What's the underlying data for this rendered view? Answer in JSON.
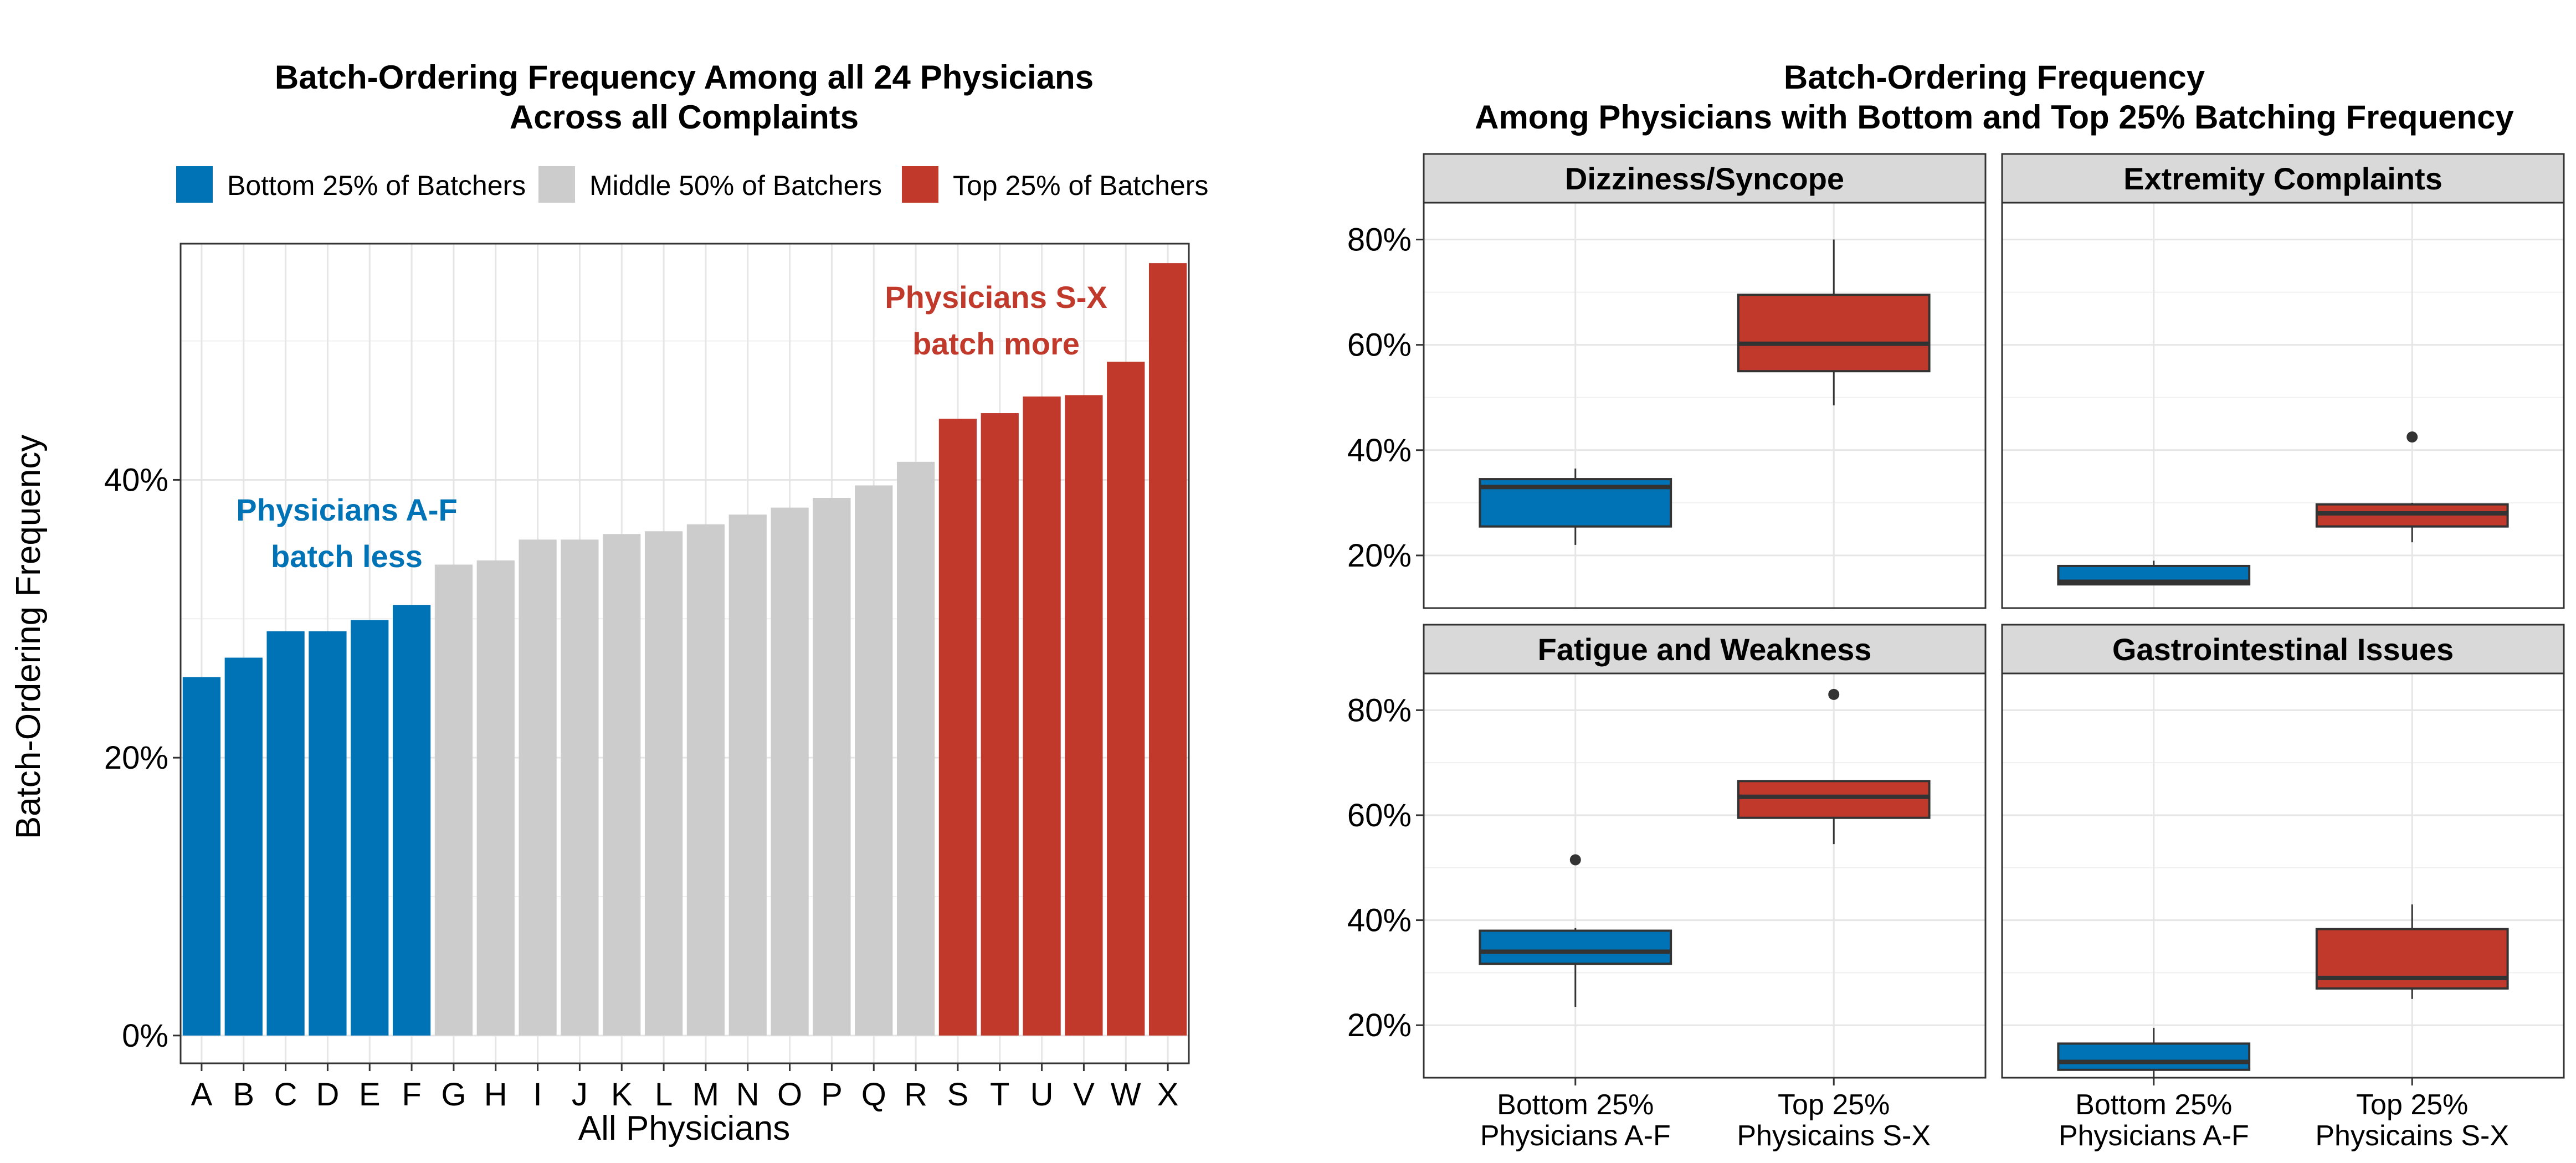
{
  "colors": {
    "bottom": "#0072b6",
    "middle": "#cccccc",
    "top": "#c0392b",
    "strip_bg": "#d9d9d9",
    "grid": "#e6e6e6",
    "box_line": "#333333"
  },
  "chart_data": [
    {
      "type": "bar",
      "title": "Batch-Ordering Frequency Among all 24 Physicians",
      "subtitle": "Across all Complaints",
      "xlabel": "All Physicians",
      "ylabel": "Batch-Ordering Frequency",
      "ylim": [
        -0.02,
        0.57
      ],
      "y_ticks": [
        0,
        0.2,
        0.4
      ],
      "y_tick_labels": [
        "0%",
        "20%",
        "40%"
      ],
      "grid": true,
      "legend_position": "top",
      "legend": [
        {
          "label": "Bottom 25% of Batchers",
          "group": "bottom"
        },
        {
          "label": "Middle 50% of Batchers",
          "group": "middle"
        },
        {
          "label": "Top 25% of Batchers",
          "group": "top"
        }
      ],
      "categories": [
        "A",
        "B",
        "C",
        "D",
        "E",
        "F",
        "G",
        "H",
        "I",
        "J",
        "K",
        "L",
        "M",
        "N",
        "O",
        "P",
        "Q",
        "R",
        "S",
        "T",
        "U",
        "V",
        "W",
        "X"
      ],
      "values": [
        0.258,
        0.272,
        0.291,
        0.291,
        0.299,
        0.31,
        0.339,
        0.342,
        0.357,
        0.357,
        0.361,
        0.363,
        0.368,
        0.375,
        0.38,
        0.387,
        0.396,
        0.413,
        0.444,
        0.448,
        0.46,
        0.461,
        0.485,
        0.556
      ],
      "groups": [
        "bottom",
        "bottom",
        "bottom",
        "bottom",
        "bottom",
        "bottom",
        "middle",
        "middle",
        "middle",
        "middle",
        "middle",
        "middle",
        "middle",
        "middle",
        "middle",
        "middle",
        "middle",
        "middle",
        "top",
        "top",
        "top",
        "top",
        "top",
        "top"
      ],
      "annotations": [
        {
          "line1": "Physicians A-F",
          "line2": "batch less",
          "group": "bottom"
        },
        {
          "line1": "Physicians S-X",
          "line2": "batch more",
          "group": "top"
        }
      ]
    },
    {
      "type": "box",
      "title": "Batch-Ordering Frequency",
      "subtitle": "Among Physicians with Bottom and Top 25% Batching Frequency",
      "ylim": [
        0.1,
        0.87
      ],
      "y_ticks": [
        0.2,
        0.4,
        0.6,
        0.8
      ],
      "y_tick_labels": [
        "20%",
        "40%",
        "60%",
        "80%"
      ],
      "grid": true,
      "categories": [
        {
          "line1": "Bottom 25%",
          "line2": "Physicians A-F",
          "group": "bottom"
        },
        {
          "line1": "Top 25%",
          "line2": "Physicains S-X",
          "group": "top"
        }
      ],
      "panels": [
        {
          "label": "Dizziness/Syncope",
          "boxes": [
            {
              "group": "bottom",
              "min": 0.22,
              "q1": 0.255,
              "median": 0.33,
              "q3": 0.345,
              "max": 0.365,
              "outliers": []
            },
            {
              "group": "top",
              "min": 0.485,
              "q1": 0.55,
              "median": 0.602,
              "q3": 0.695,
              "max": 0.8,
              "outliers": []
            }
          ]
        },
        {
          "label": "Extremity Complaints",
          "boxes": [
            {
              "group": "bottom",
              "min": 0.145,
              "q1": 0.145,
              "median": 0.15,
              "q3": 0.18,
              "max": 0.19,
              "outliers": []
            },
            {
              "group": "top",
              "min": 0.225,
              "q1": 0.255,
              "median": 0.28,
              "q3": 0.297,
              "max": 0.3,
              "outliers": [
                0.425
              ]
            }
          ]
        },
        {
          "label": "Fatigue and Weakness",
          "boxes": [
            {
              "group": "bottom",
              "min": 0.235,
              "q1": 0.317,
              "median": 0.34,
              "q3": 0.38,
              "max": 0.385,
              "outliers": [
                0.515
              ]
            },
            {
              "group": "top",
              "min": 0.545,
              "q1": 0.595,
              "median": 0.635,
              "q3": 0.665,
              "max": 0.665,
              "outliers": [
                0.83
              ]
            }
          ]
        },
        {
          "label": "Gastrointestinal Issues",
          "boxes": [
            {
              "group": "bottom",
              "min": 0.1,
              "q1": 0.115,
              "median": 0.13,
              "q3": 0.165,
              "max": 0.195,
              "outliers": []
            },
            {
              "group": "top",
              "min": 0.25,
              "q1": 0.27,
              "median": 0.29,
              "q3": 0.383,
              "max": 0.43,
              "outliers": []
            }
          ]
        }
      ]
    }
  ]
}
